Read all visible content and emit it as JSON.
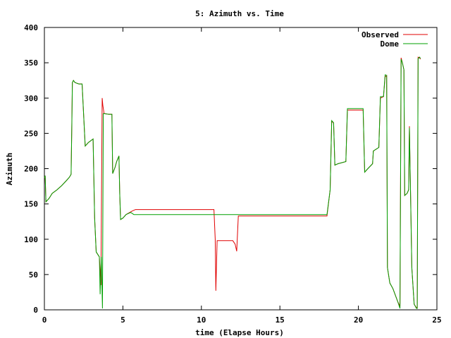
{
  "chart_data": {
    "type": "line",
    "title": "5: Azimuth vs. Time",
    "xlabel": "time (Elapse Hours)",
    "ylabel": "Azimuth",
    "xlim": [
      0,
      25
    ],
    "ylim": [
      0,
      400
    ],
    "xticks": [
      "0",
      "5",
      "10",
      "15",
      "20",
      "25"
    ],
    "yticks": [
      "0",
      "50",
      "100",
      "150",
      "200",
      "250",
      "300",
      "350",
      "400"
    ],
    "grid": false,
    "legend_position": "top-right",
    "series": [
      {
        "name": "Observed",
        "color": "#e00000",
        "points": [
          [
            0,
            187
          ],
          [
            0.05,
            190
          ],
          [
            0.1,
            153
          ],
          [
            0.3,
            158
          ],
          [
            0.5,
            165
          ],
          [
            0.8,
            170
          ],
          [
            1.1,
            176
          ],
          [
            1.4,
            183
          ],
          [
            1.6,
            188
          ],
          [
            1.7,
            192
          ],
          [
            1.72,
            220
          ],
          [
            1.75,
            270
          ],
          [
            1.78,
            322
          ],
          [
            1.85,
            325
          ],
          [
            1.95,
            322
          ],
          [
            2.2,
            320
          ],
          [
            2.4,
            320
          ],
          [
            2.6,
            232
          ],
          [
            2.8,
            237
          ],
          [
            3.1,
            242
          ],
          [
            3.2,
            130
          ],
          [
            3.3,
            82
          ],
          [
            3.5,
            75
          ],
          [
            3.6,
            35
          ],
          [
            3.68,
            300
          ],
          [
            3.72,
            290
          ],
          [
            3.8,
            278
          ],
          [
            4.1,
            277
          ],
          [
            4.3,
            277
          ],
          [
            4.35,
            193
          ],
          [
            4.5,
            202
          ],
          [
            4.6,
            210
          ],
          [
            4.75,
            218
          ],
          [
            4.8,
            165
          ],
          [
            4.85,
            128
          ],
          [
            5.0,
            130
          ],
          [
            5.2,
            135
          ],
          [
            5.6,
            140
          ],
          [
            5.8,
            142
          ],
          [
            8,
            142
          ],
          [
            10.5,
            142
          ],
          [
            10.8,
            142
          ],
          [
            10.88,
            100
          ],
          [
            10.92,
            27
          ],
          [
            11.0,
            98
          ],
          [
            11.4,
            98
          ],
          [
            12.0,
            98
          ],
          [
            12.15,
            93
          ],
          [
            12.25,
            83
          ],
          [
            12.35,
            133
          ],
          [
            14,
            133
          ],
          [
            16.5,
            133
          ],
          [
            18.0,
            133
          ],
          [
            18.2,
            170
          ],
          [
            18.3,
            267
          ],
          [
            18.42,
            265
          ],
          [
            18.5,
            205
          ],
          [
            18.7,
            207
          ],
          [
            19.2,
            210
          ],
          [
            19.3,
            283
          ],
          [
            20.0,
            283
          ],
          [
            20.3,
            283
          ],
          [
            20.4,
            195
          ],
          [
            20.6,
            200
          ],
          [
            20.9,
            207
          ],
          [
            20.95,
            225
          ],
          [
            21.3,
            230
          ],
          [
            21.4,
            300
          ],
          [
            21.6,
            302
          ],
          [
            21.7,
            330
          ],
          [
            21.8,
            332
          ],
          [
            21.85,
            60
          ],
          [
            22.0,
            38
          ],
          [
            22.2,
            30
          ],
          [
            22.5,
            12
          ],
          [
            22.65,
            5
          ],
          [
            22.72,
            357
          ],
          [
            22.8,
            350
          ],
          [
            22.9,
            340
          ],
          [
            22.95,
            162
          ],
          [
            23.1,
            165
          ],
          [
            23.2,
            170
          ],
          [
            23.25,
            260
          ],
          [
            23.4,
            60
          ],
          [
            23.55,
            8
          ],
          [
            23.7,
            3
          ],
          [
            23.75,
            3
          ],
          [
            23.8,
            358
          ],
          [
            23.9,
            357
          ],
          [
            23.95,
            355
          ]
        ]
      },
      {
        "name": "Dome",
        "color": "#00a000",
        "points": [
          [
            0,
            187
          ],
          [
            0.05,
            190
          ],
          [
            0.1,
            153
          ],
          [
            0.3,
            158
          ],
          [
            0.5,
            165
          ],
          [
            0.8,
            170
          ],
          [
            1.1,
            176
          ],
          [
            1.4,
            183
          ],
          [
            1.6,
            188
          ],
          [
            1.7,
            192
          ],
          [
            1.72,
            220
          ],
          [
            1.75,
            265
          ],
          [
            1.78,
            322
          ],
          [
            1.85,
            325
          ],
          [
            1.95,
            322
          ],
          [
            2.2,
            320
          ],
          [
            2.4,
            320
          ],
          [
            2.6,
            232
          ],
          [
            2.8,
            237
          ],
          [
            3.1,
            242
          ],
          [
            3.2,
            130
          ],
          [
            3.3,
            82
          ],
          [
            3.5,
            75
          ],
          [
            3.55,
            22
          ],
          [
            3.62,
            75
          ],
          [
            3.7,
            2
          ],
          [
            3.75,
            278
          ],
          [
            4.1,
            277
          ],
          [
            4.3,
            277
          ],
          [
            4.35,
            193
          ],
          [
            4.5,
            202
          ],
          [
            4.6,
            210
          ],
          [
            4.75,
            218
          ],
          [
            4.8,
            165
          ],
          [
            4.85,
            128
          ],
          [
            5.0,
            130
          ],
          [
            5.2,
            135
          ],
          [
            5.5,
            138
          ],
          [
            5.7,
            135
          ],
          [
            8,
            135
          ],
          [
            11,
            135
          ],
          [
            14,
            135
          ],
          [
            16.5,
            135
          ],
          [
            18.0,
            135
          ],
          [
            18.2,
            170
          ],
          [
            18.3,
            268
          ],
          [
            18.42,
            265
          ],
          [
            18.5,
            205
          ],
          [
            18.7,
            207
          ],
          [
            19.2,
            210
          ],
          [
            19.3,
            285
          ],
          [
            20.0,
            285
          ],
          [
            20.3,
            285
          ],
          [
            20.4,
            195
          ],
          [
            20.6,
            200
          ],
          [
            20.9,
            207
          ],
          [
            20.95,
            225
          ],
          [
            21.3,
            230
          ],
          [
            21.4,
            302
          ],
          [
            21.6,
            302
          ],
          [
            21.7,
            333
          ],
          [
            21.8,
            332
          ],
          [
            21.85,
            60
          ],
          [
            22.0,
            38
          ],
          [
            22.2,
            30
          ],
          [
            22.5,
            12
          ],
          [
            22.65,
            2
          ],
          [
            22.72,
            355
          ],
          [
            22.8,
            350
          ],
          [
            22.9,
            340
          ],
          [
            22.95,
            162
          ],
          [
            23.1,
            165
          ],
          [
            23.2,
            170
          ],
          [
            23.25,
            258
          ],
          [
            23.4,
            60
          ],
          [
            23.55,
            8
          ],
          [
            23.7,
            2
          ],
          [
            23.75,
            2
          ],
          [
            23.8,
            356
          ],
          [
            23.9,
            358
          ],
          [
            23.95,
            356
          ]
        ]
      }
    ]
  }
}
